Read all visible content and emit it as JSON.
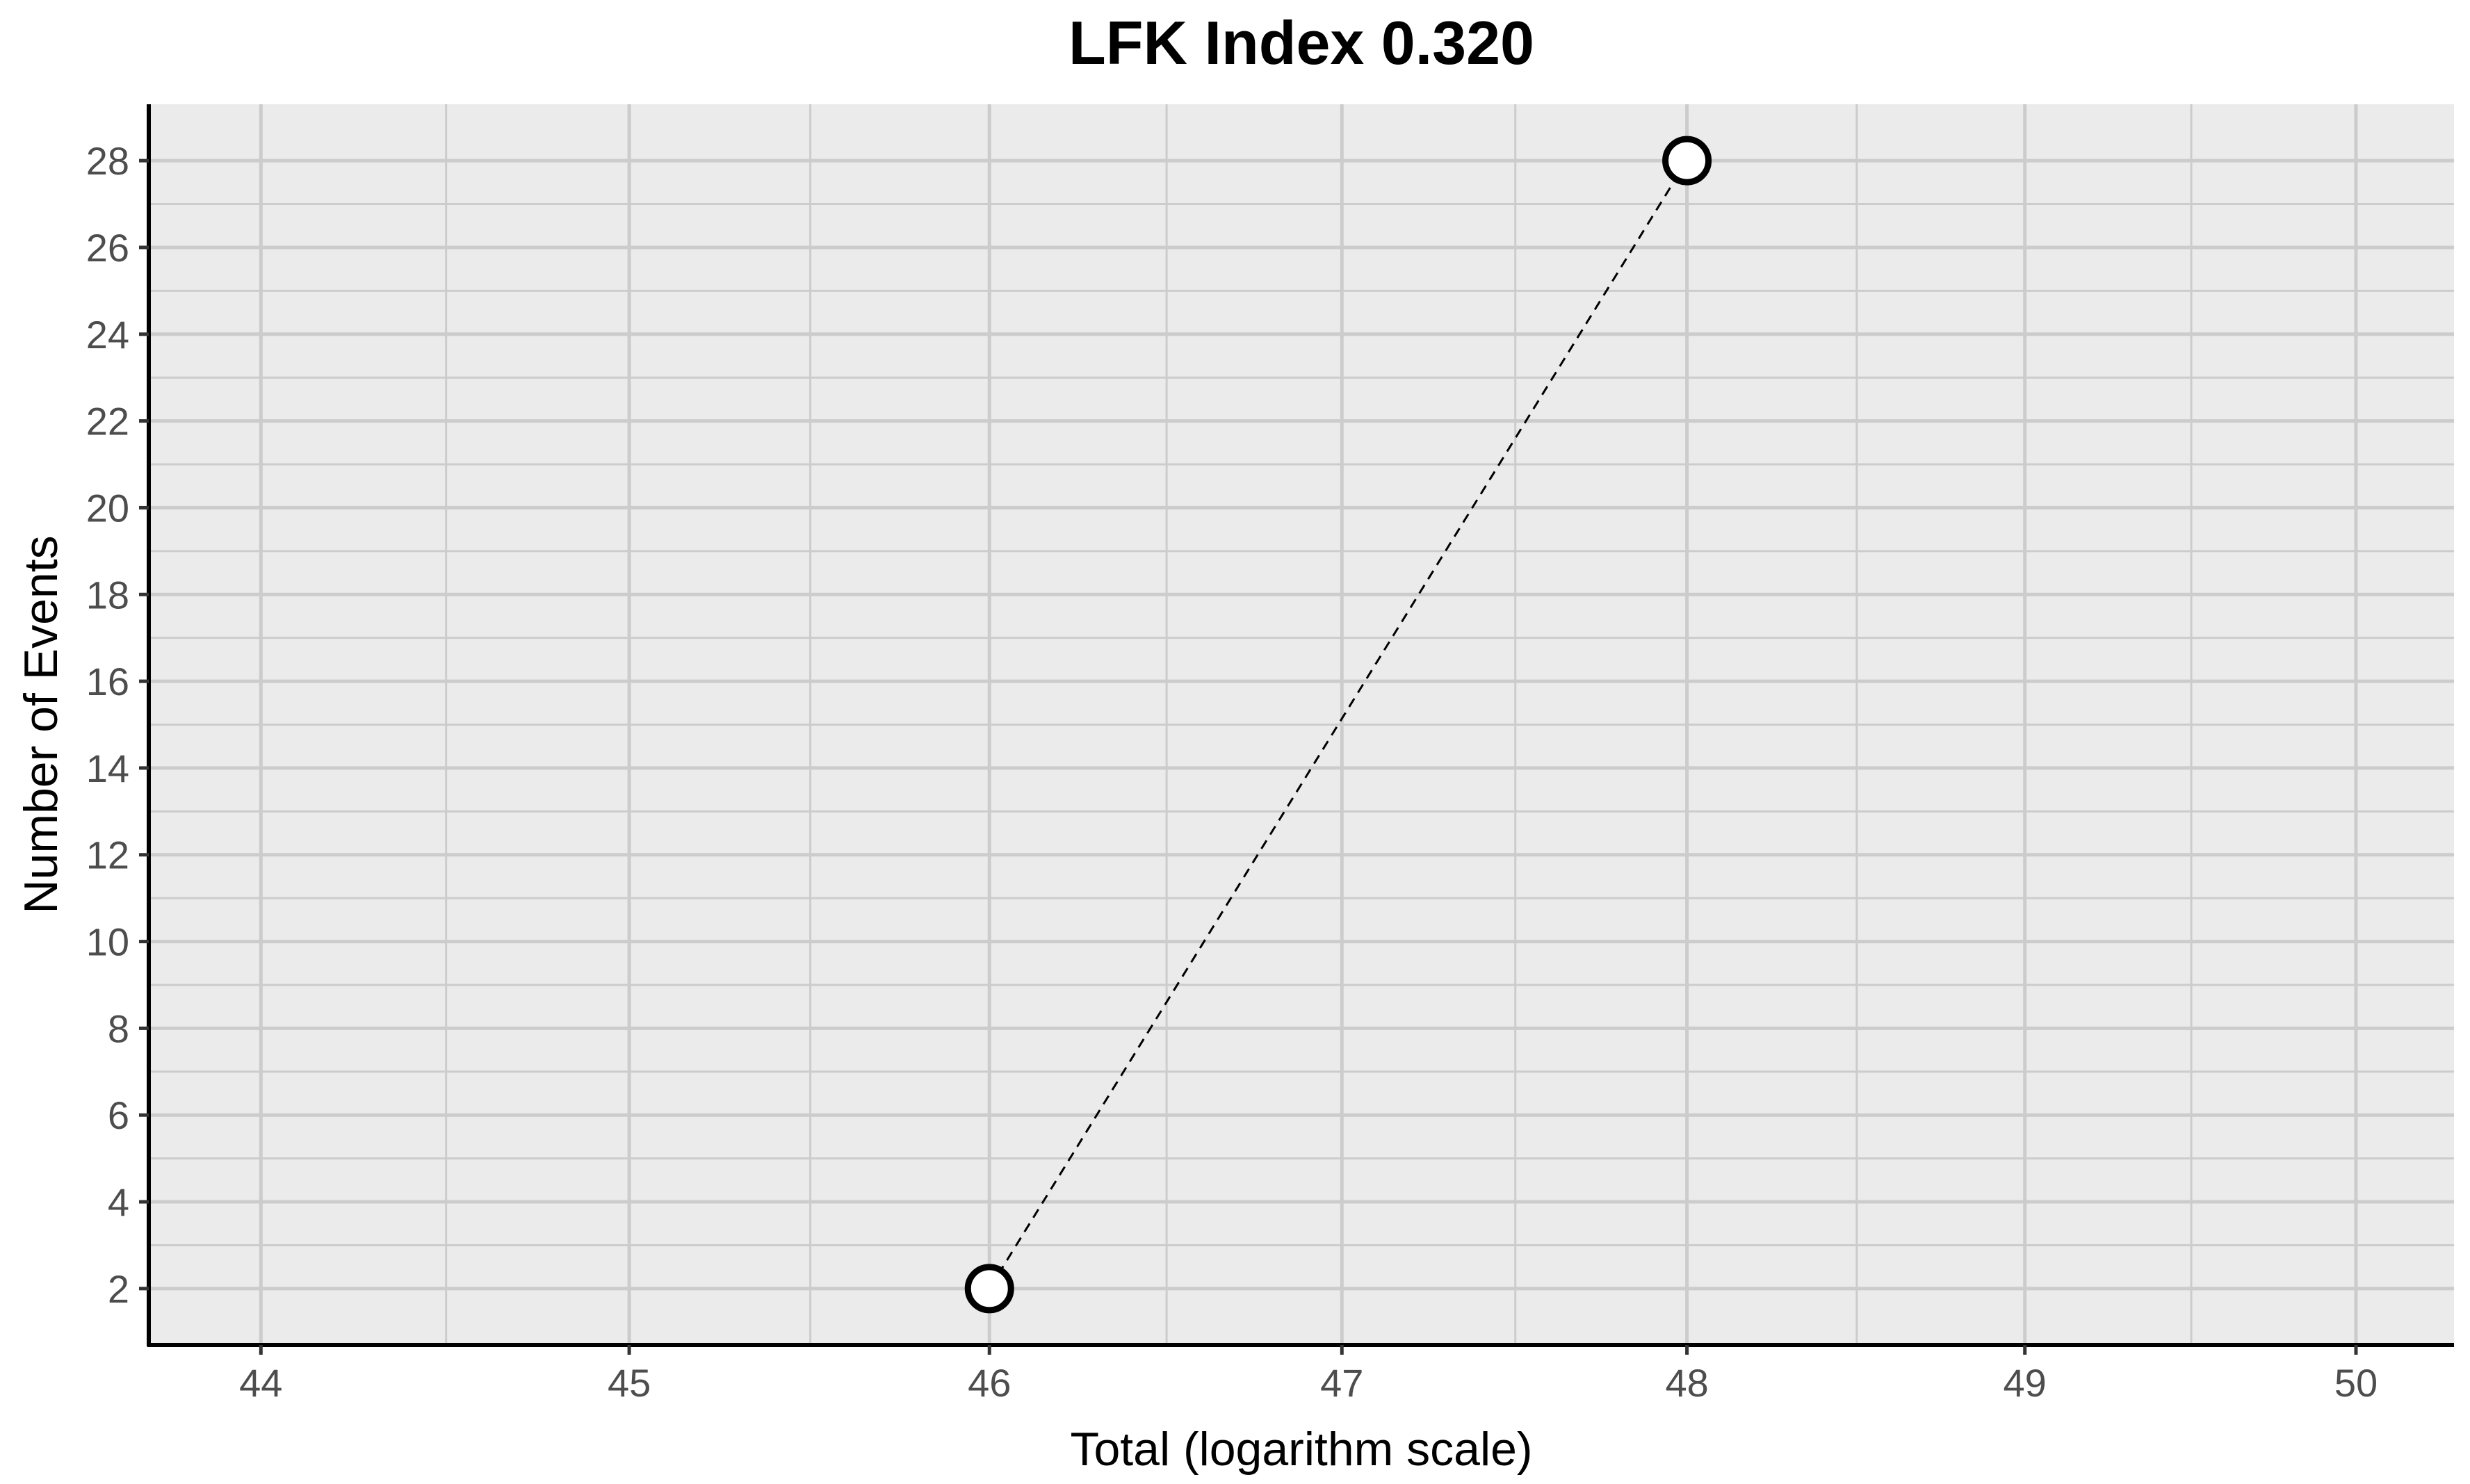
{
  "chart_data": {
    "type": "line",
    "title": "LFK Index 0.320",
    "xlabel": "Total (logarithm scale)",
    "ylabel": "Number of Events",
    "x_log_scale": true,
    "xlim": [
      43.7,
      50.3
    ],
    "ylim": [
      0.7,
      29.3
    ],
    "x_ticks": [
      44,
      45,
      46,
      47,
      48,
      49,
      50
    ],
    "y_ticks": [
      2,
      4,
      6,
      8,
      10,
      12,
      14,
      16,
      18,
      20,
      22,
      24,
      26,
      28
    ],
    "grid": true,
    "legend": "none",
    "series": [
      {
        "values": [
          {
            "x": 46,
            "y": 2
          },
          {
            "x": 48,
            "y": 28
          }
        ]
      }
    ],
    "colors": {
      "panel_background": "#ebebeb",
      "grid": "#cccccc",
      "axis": "#000000",
      "line": "#000000",
      "marker_fill": "#ffffff",
      "marker_stroke": "#000000"
    }
  }
}
